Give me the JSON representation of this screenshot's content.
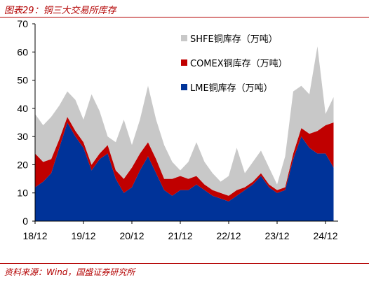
{
  "figure": {
    "title": "图表29：铜三大交易所库存",
    "source": "资料来源：Wind，国盛证券研究所"
  },
  "chart_data": {
    "type": "area",
    "stacked": true,
    "x_ticks": [
      "18/12",
      "19/12",
      "20/12",
      "21/12",
      "22/12",
      "23/12",
      "24/12"
    ],
    "ylim": [
      0,
      70
    ],
    "y_ticks": [
      0,
      10,
      20,
      30,
      40,
      50,
      60,
      70
    ],
    "grid": false,
    "legend_position": "top-right",
    "x": [
      "2018-12",
      "2019-02",
      "2019-04",
      "2019-06",
      "2019-08",
      "2019-10",
      "2019-12",
      "2020-02",
      "2020-04",
      "2020-06",
      "2020-08",
      "2020-10",
      "2020-12",
      "2021-02",
      "2021-04",
      "2021-06",
      "2021-08",
      "2021-10",
      "2021-12",
      "2022-02",
      "2022-04",
      "2022-06",
      "2022-08",
      "2022-10",
      "2022-12",
      "2023-02",
      "2023-04",
      "2023-06",
      "2023-08",
      "2023-10",
      "2023-12",
      "2024-02",
      "2024-04",
      "2024-06",
      "2024-08",
      "2024-10",
      "2024-12",
      "2025-02"
    ],
    "series": [
      {
        "name": "LME铜库存（万吨）",
        "color": "#003399",
        "values": [
          12,
          14,
          17,
          26,
          35,
          30,
          26,
          18,
          22,
          24,
          15,
          10,
          12,
          18,
          23,
          17,
          11,
          9,
          11,
          11,
          13,
          11,
          9,
          8,
          7,
          9,
          11,
          13,
          16,
          12,
          10,
          11,
          22,
          30,
          26,
          24,
          24,
          19
        ]
      },
      {
        "name": "COMEX铜库存（万吨）",
        "color": "#c00000",
        "values": [
          12,
          7,
          5,
          3,
          2,
          2,
          2,
          2,
          2,
          3,
          3,
          5,
          7,
          6,
          5,
          5,
          4,
          6,
          5,
          4,
          3,
          2,
          2,
          2,
          2,
          2,
          1,
          1,
          1,
          1,
          1,
          1,
          2,
          3,
          5,
          8,
          10,
          16
        ]
      },
      {
        "name": "SHFE铜库存（万吨）",
        "color": "#c8c8c8",
        "values": [
          14,
          13,
          15,
          12,
          9,
          11,
          8,
          25,
          15,
          3,
          10,
          21,
          8,
          12,
          20,
          14,
          12,
          6,
          2,
          6,
          12,
          8,
          6,
          4,
          7,
          15,
          5,
          7,
          8,
          6,
          2,
          11,
          22,
          15,
          14,
          30,
          4,
          9
        ]
      }
    ]
  }
}
